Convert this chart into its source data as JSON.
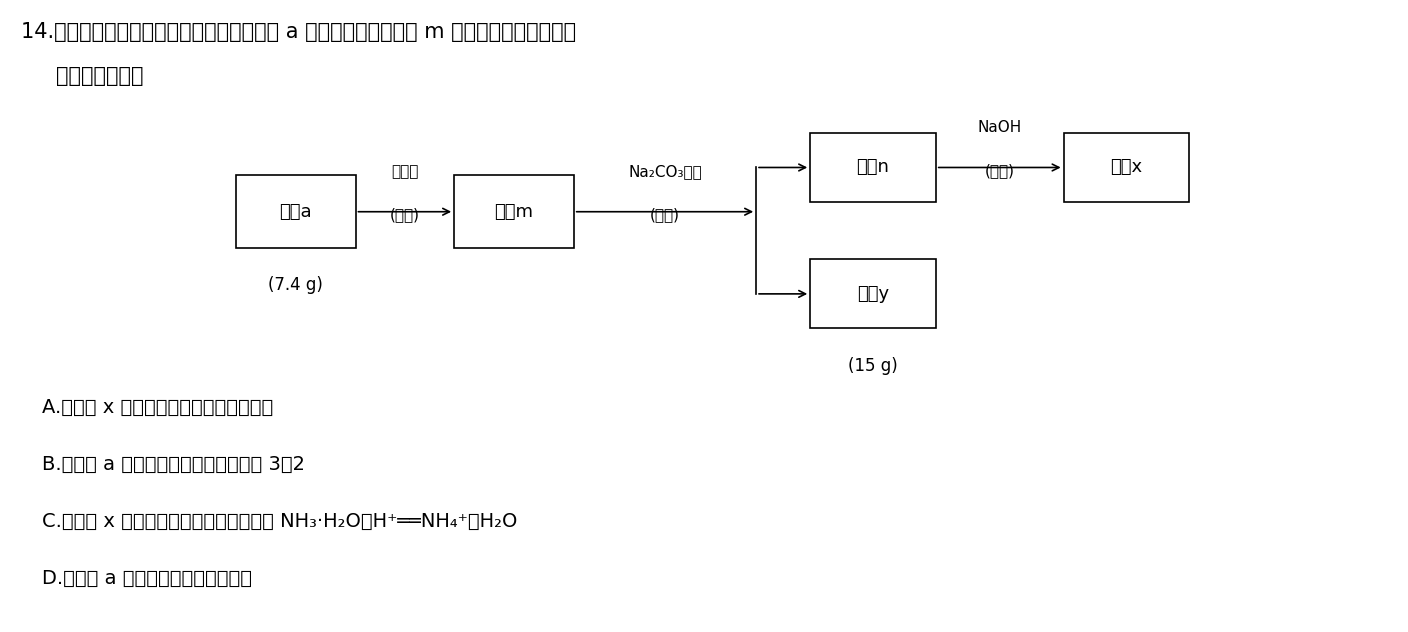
{
  "title_line1": "14.　某化学小组对由两种元素组成的化合物 a 进行如图实验，溶液 m 焰色试验为砖红色。下",
  "title_line2": "列说法正确的是",
  "bg_color": "#ffffff",
  "text_color": "#000000",
  "box_color": "#ffffff",
  "box_edge_color": "#000000",
  "box1_label": "固体a",
  "box1_sub": "(7.4 g)",
  "box2_label": "溶液m",
  "box3_label": "溶液n",
  "box4_label": "气体x",
  "box5_label": "沉淠y",
  "box5_sub": "(15 g)",
  "arr1_top": "稀盐酸",
  "arr1_bot": "(足量)",
  "arr2_top": "Na₂CO₃溶液",
  "arr2_bot": "(足量)",
  "arr3_top": "NaOH",
  "arr3_bot": "(加热)",
  "opt_A": "A.　气体 x 能使湿润的蓝色石蕊试纸变红",
  "opt_B": "B.　固体 a 中阴、阳离子的数目之比为 3：2",
  "opt_C": "C.　气体 x 与稀盐酸反应的离子方程式为 NH₃·H₂O＋H⁺══NH₄⁺＋H₂O",
  "opt_D": "D.　固体 a 与稀盐酸反应生成两种盐",
  "font_size_title": 15,
  "font_size_box": 13,
  "font_size_arrow_label": 11,
  "font_size_option": 14
}
